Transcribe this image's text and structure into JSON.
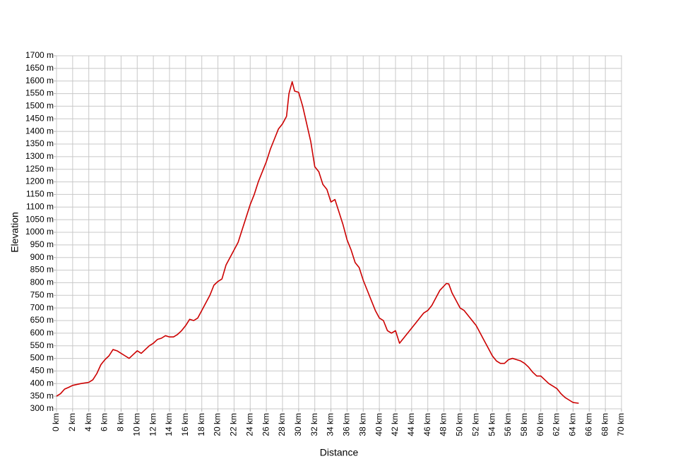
{
  "chart_data": {
    "type": "line",
    "x_label": "Distance",
    "y_label": "Elevation",
    "x": [
      0,
      0.5,
      1,
      1.5,
      2,
      3,
      4,
      4.5,
      5,
      5.5,
      6,
      6.5,
      7,
      7.5,
      8,
      8.5,
      9,
      9.5,
      10,
      10.5,
      11,
      11.5,
      12,
      12.5,
      13,
      13.5,
      14,
      14.5,
      15,
      15.5,
      16,
      16.5,
      17,
      17.5,
      18,
      18.5,
      19,
      19.5,
      20,
      20.5,
      21,
      21.5,
      22,
      22.5,
      23,
      23.5,
      24,
      24.5,
      25,
      25.5,
      26,
      26.5,
      27,
      27.5,
      28,
      28.5,
      28.8,
      29.2,
      29.5,
      30,
      30.5,
      31,
      31.5,
      32,
      32.5,
      33,
      33.5,
      34,
      34.5,
      35,
      35.5,
      36,
      36.5,
      37,
      37.5,
      38,
      38.5,
      39,
      39.5,
      40,
      40.5,
      41,
      41.5,
      42,
      42.5,
      43,
      43.5,
      44,
      44.5,
      45,
      45.5,
      46,
      46.5,
      47,
      47.5,
      48.3,
      48.6,
      49,
      49.5,
      50,
      50.5,
      51,
      51.5,
      52,
      52.5,
      53,
      53.5,
      54,
      54.5,
      55,
      55.5,
      56,
      56.5,
      57,
      57.5,
      58,
      58.5,
      59,
      59.5,
      60,
      60.5,
      61,
      61.5,
      62,
      62.5,
      63,
      63.5,
      64,
      64.7
    ],
    "values": [
      350,
      360,
      378,
      385,
      393,
      400,
      405,
      415,
      440,
      475,
      495,
      510,
      535,
      530,
      520,
      510,
      500,
      515,
      530,
      520,
      535,
      550,
      560,
      575,
      580,
      590,
      585,
      585,
      595,
      610,
      630,
      655,
      650,
      660,
      690,
      720,
      750,
      790,
      805,
      815,
      870,
      900,
      930,
      960,
      1010,
      1060,
      1110,
      1150,
      1200,
      1240,
      1280,
      1330,
      1370,
      1410,
      1430,
      1460,
      1550,
      1597,
      1560,
      1555,
      1500,
      1430,
      1360,
      1260,
      1240,
      1190,
      1170,
      1120,
      1130,
      1080,
      1030,
      970,
      930,
      880,
      860,
      810,
      770,
      730,
      690,
      660,
      650,
      610,
      600,
      610,
      560,
      580,
      600,
      620,
      640,
      660,
      680,
      690,
      710,
      740,
      770,
      797,
      795,
      760,
      730,
      700,
      690,
      670,
      650,
      630,
      600,
      570,
      540,
      510,
      490,
      480,
      480,
      495,
      500,
      495,
      490,
      480,
      465,
      445,
      430,
      430,
      415,
      400,
      390,
      380,
      360,
      345,
      335,
      325,
      322
    ],
    "color": "#cc0000",
    "xlim": [
      0,
      70
    ],
    "ylim": [
      300,
      1700
    ],
    "grid": true,
    "xticks": [
      {
        "value": 0,
        "label": "0 km"
      },
      {
        "value": 2,
        "label": "2 km"
      },
      {
        "value": 4,
        "label": "4 km"
      },
      {
        "value": 6,
        "label": "6 km"
      },
      {
        "value": 8,
        "label": "8 km"
      },
      {
        "value": 10,
        "label": "10 km"
      },
      {
        "value": 12,
        "label": "12 km"
      },
      {
        "value": 14,
        "label": "14 km"
      },
      {
        "value": 16,
        "label": "16 km"
      },
      {
        "value": 18,
        "label": "18 km"
      },
      {
        "value": 20,
        "label": "20 km"
      },
      {
        "value": 22,
        "label": "22 km"
      },
      {
        "value": 24,
        "label": "24 km"
      },
      {
        "value": 26,
        "label": "26 km"
      },
      {
        "value": 28,
        "label": "28 km"
      },
      {
        "value": 30,
        "label": "30 km"
      },
      {
        "value": 32,
        "label": "32 km"
      },
      {
        "value": 34,
        "label": "34 km"
      },
      {
        "value": 36,
        "label": "36 km"
      },
      {
        "value": 38,
        "label": "38 km"
      },
      {
        "value": 40,
        "label": "40 km"
      },
      {
        "value": 42,
        "label": "42 km"
      },
      {
        "value": 44,
        "label": "44 km"
      },
      {
        "value": 46,
        "label": "46 km"
      },
      {
        "value": 48,
        "label": "48 km"
      },
      {
        "value": 50,
        "label": "50 km"
      },
      {
        "value": 52,
        "label": "52 km"
      },
      {
        "value": 54,
        "label": "54 km"
      },
      {
        "value": 56,
        "label": "56 km"
      },
      {
        "value": 58,
        "label": "58 km"
      },
      {
        "value": 60,
        "label": "60 km"
      },
      {
        "value": 62,
        "label": "62 km"
      },
      {
        "value": 64,
        "label": "64 km"
      },
      {
        "value": 66,
        "label": "66 km"
      },
      {
        "value": 68,
        "label": "68 km"
      },
      {
        "value": 70,
        "label": "70 km"
      }
    ],
    "yticks": [
      {
        "value": 300,
        "label": "300 m"
      },
      {
        "value": 350,
        "label": "350 m"
      },
      {
        "value": 400,
        "label": "400 m"
      },
      {
        "value": 450,
        "label": "450 m"
      },
      {
        "value": 500,
        "label": "500 m"
      },
      {
        "value": 550,
        "label": "550 m"
      },
      {
        "value": 600,
        "label": "600 m"
      },
      {
        "value": 650,
        "label": "650 m"
      },
      {
        "value": 700,
        "label": "700 m"
      },
      {
        "value": 750,
        "label": "750 m"
      },
      {
        "value": 800,
        "label": "800 m"
      },
      {
        "value": 850,
        "label": "850 m"
      },
      {
        "value": 900,
        "label": "900 m"
      },
      {
        "value": 950,
        "label": "950 m"
      },
      {
        "value": 1000,
        "label": "1000 m"
      },
      {
        "value": 1050,
        "label": "1050 m"
      },
      {
        "value": 1100,
        "label": "1100 m"
      },
      {
        "value": 1150,
        "label": "1150 m"
      },
      {
        "value": 1200,
        "label": "1200 m"
      },
      {
        "value": 1250,
        "label": "1250 m"
      },
      {
        "value": 1300,
        "label": "1300 m"
      },
      {
        "value": 1350,
        "label": "1350 m"
      },
      {
        "value": 1400,
        "label": "1400 m"
      },
      {
        "value": 1450,
        "label": "1450 m"
      },
      {
        "value": 1500,
        "label": "1500 m"
      },
      {
        "value": 1550,
        "label": "1550 m"
      },
      {
        "value": 1600,
        "label": "1600 m"
      },
      {
        "value": 1650,
        "label": "1650 m"
      },
      {
        "value": 1700,
        "label": "1700 m"
      }
    ]
  }
}
